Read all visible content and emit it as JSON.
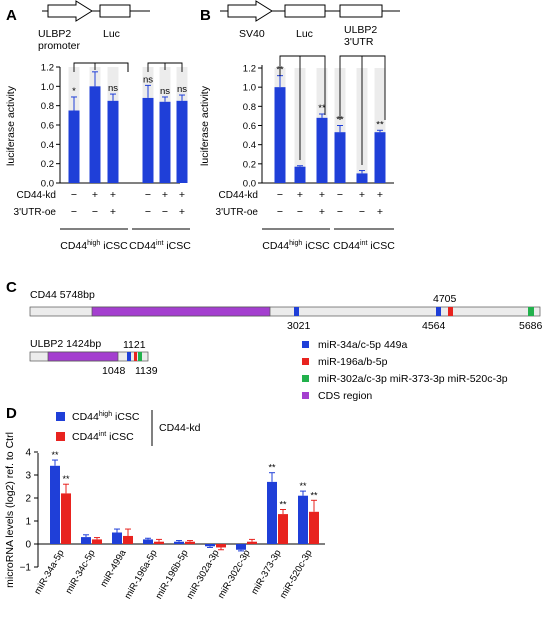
{
  "colors": {
    "blue": "#1f3fd8",
    "red": "#e8231f",
    "green": "#22b14c",
    "purple": "#a43fcf",
    "bar_track": "#ececec",
    "axis": "#000000"
  },
  "panels": {
    "A": {
      "label": "A",
      "construct": {
        "promoter_l1": "ULBP2",
        "promoter_l2": "promoter",
        "luc": "Luc"
      },
      "ylabel": "luciferase activity",
      "ticks": [
        "0.0",
        "0.2",
        "0.4",
        "0.6",
        "0.8",
        "1.0",
        "1.2"
      ],
      "row1_label": "CD44-kd",
      "row2_label": "3'UTR-oe",
      "row1": [
        "−",
        "+",
        "+",
        "−",
        "+",
        "+"
      ],
      "row2": [
        "−",
        "−",
        "+",
        "−",
        "−",
        "+"
      ],
      "group1": {
        "pre": "CD44",
        "sup": "high",
        "post": " iCSC"
      },
      "group2": {
        "pre": "CD44",
        "sup": "int",
        "post": " iCSC"
      }
    },
    "B": {
      "label": "B",
      "construct": {
        "sv40": "SV40",
        "luc": "Luc",
        "utr_l1": "ULBP2",
        "utr_l2": "3'UTR"
      },
      "ylabel": "luciferase activity",
      "ticks": [
        "0.0",
        "0.2",
        "0.4",
        "0.6",
        "0.8",
        "1.0",
        "1.2"
      ],
      "row1_label": "CD44-kd",
      "row2_label": "3'UTR-oe",
      "row1": [
        "−",
        "+",
        "+",
        "−",
        "+",
        "+"
      ],
      "row2": [
        "−",
        "−",
        "+",
        "−",
        "−",
        "+"
      ],
      "group1": {
        "pre": "CD44",
        "sup": "high",
        "post": " iCSC"
      },
      "group2": {
        "pre": "CD44",
        "sup": "int",
        "post": " iCSC"
      }
    },
    "C": {
      "label": "C",
      "cd44_title": "CD44 5748bp",
      "ulbp2_title": "ULBP2 1424bp",
      "cd44_positions": [
        "3021",
        "4705",
        "4564",
        "5686"
      ],
      "ulbp2_positions": [
        "1121",
        "1048",
        "1139"
      ],
      "legend": [
        "miR-34a/c-5p 449a",
        "miR-196a/b-5p",
        "miR-302a/c-3p miR-373-3p miR-520c-3p",
        "CDS region"
      ]
    },
    "D": {
      "label": "D",
      "ylabel": "microRNA levels (log2) ref. to Ctrl",
      "ticks": [
        "−1",
        "0",
        "1",
        "2",
        "3",
        "4"
      ],
      "legend_kd": "CD44-kd",
      "legend_high": {
        "pre": "CD44",
        "sup": "high",
        "post": " iCSC"
      },
      "legend_int": {
        "pre": "CD44",
        "sup": "int",
        "post": " iCSC"
      }
    }
  },
  "chart_data": [
    {
      "type": "bar",
      "panel": "A",
      "ylabel": "luciferase activity",
      "ylim": [
        0,
        1.2
      ],
      "categories": [
        "1",
        "2",
        "3",
        "4",
        "5",
        "6"
      ],
      "values": [
        0.75,
        1.0,
        0.85,
        0.88,
        0.84,
        0.85
      ],
      "errors": [
        0.14,
        0.15,
        0.07,
        0.13,
        0.05,
        0.06
      ],
      "labels": [
        "*",
        "",
        "ns",
        "ns",
        "ns",
        "ns"
      ]
    },
    {
      "type": "bar",
      "panel": "B",
      "ylabel": "luciferase activity",
      "ylim": [
        0,
        1.2
      ],
      "categories": [
        "1",
        "2",
        "3",
        "4",
        "5",
        "6"
      ],
      "values": [
        1.0,
        0.17,
        0.68,
        0.53,
        0.1,
        0.53
      ],
      "errors": [
        0.12,
        0.01,
        0.04,
        0.07,
        0.03,
        0.02
      ],
      "labels": [
        "**",
        "",
        "**",
        "**",
        "",
        "**"
      ]
    },
    {
      "type": "bar",
      "panel": "D",
      "ylabel": "microRNA levels (log2) ref. to Ctrl",
      "ylim": [
        -1,
        4
      ],
      "categories": [
        "miR-34a-5p",
        "miR-34c-5p",
        "miR-499a",
        "miR-196a-5p",
        "miR-196b-5p",
        "miR-302a-3p",
        "miR-302c-3p",
        "miR-373-3p",
        "miR-520c-3p"
      ],
      "series": [
        {
          "name": "CD44high iCSC",
          "values": [
            3.4,
            0.3,
            0.5,
            0.2,
            0.1,
            -0.1,
            -0.25,
            2.7,
            2.1
          ],
          "errors": [
            0.25,
            0.1,
            0.15,
            0.05,
            0.05,
            0.05,
            0.05,
            0.4,
            0.2
          ],
          "labels": [
            "**",
            "",
            "",
            "",
            "",
            "",
            "",
            "**",
            "**"
          ]
        },
        {
          "name": "CD44int iCSC",
          "values": [
            2.2,
            0.2,
            0.35,
            0.1,
            0.1,
            -0.15,
            0.1,
            1.3,
            1.4
          ],
          "errors": [
            0.4,
            0.08,
            0.3,
            0.1,
            0.05,
            0.1,
            0.1,
            0.2,
            0.5
          ],
          "labels": [
            "**",
            "",
            "",
            "",
            "",
            "",
            "",
            "**",
            "**"
          ]
        }
      ]
    }
  ]
}
